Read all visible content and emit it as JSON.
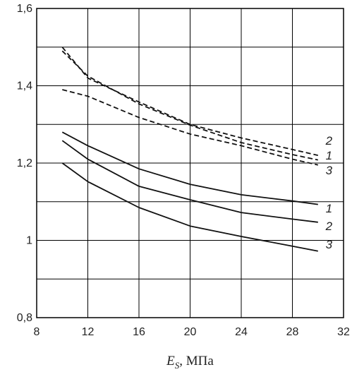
{
  "chart_data": {
    "type": "line",
    "title": "",
    "xlabel": {
      "main": "E",
      "sub": "S",
      "rest": ", МПа"
    },
    "ylabel": "",
    "xlim": [
      8,
      32
    ],
    "ylim": [
      0.8,
      1.6
    ],
    "x_ticks": [
      8,
      12,
      16,
      20,
      24,
      28,
      32
    ],
    "x_tick_labels": [
      "8",
      "12",
      "16",
      "20",
      "24",
      "28",
      "32"
    ],
    "y_ticks": [
      0.8,
      1.0,
      1.2,
      1.4,
      1.6
    ],
    "y_tick_labels": [
      "0,8",
      "1",
      "1,2",
      "1,4",
      "1,6"
    ],
    "y_grid": [
      0.8,
      0.9,
      1.0,
      1.1,
      1.2,
      1.3,
      1.4,
      1.5,
      1.6
    ],
    "x_grid": [
      8,
      12,
      16,
      20,
      24,
      28,
      32
    ],
    "grid": true,
    "series": [
      {
        "label": "1",
        "style": "solid",
        "x": [
          10,
          12,
          16,
          20,
          24,
          28,
          30
        ],
        "y": [
          1.28,
          1.245,
          1.185,
          1.145,
          1.118,
          1.102,
          1.093
        ]
      },
      {
        "label": "2",
        "style": "solid",
        "x": [
          10,
          12,
          16,
          20,
          24,
          28,
          30
        ],
        "y": [
          1.258,
          1.21,
          1.14,
          1.105,
          1.072,
          1.055,
          1.047
        ]
      },
      {
        "label": "3",
        "style": "solid",
        "x": [
          10,
          12,
          16,
          20,
          24,
          28,
          30
        ],
        "y": [
          1.2,
          1.152,
          1.085,
          1.037,
          1.01,
          0.985,
          0.972
        ]
      },
      {
        "label": "2",
        "style": "dashed",
        "x": [
          10,
          12,
          16,
          20,
          24,
          28,
          30
        ],
        "y": [
          1.5,
          1.42,
          1.358,
          1.3,
          1.265,
          1.235,
          1.22
        ]
      },
      {
        "label": "1",
        "style": "dashed",
        "x": [
          10,
          12,
          16,
          20,
          24,
          28,
          30
        ],
        "y": [
          1.49,
          1.425,
          1.353,
          1.298,
          1.253,
          1.222,
          1.208
        ]
      },
      {
        "label": "3",
        "style": "dashed",
        "x": [
          10,
          12,
          16,
          20,
          24,
          28,
          30
        ],
        "y": [
          1.39,
          1.373,
          1.318,
          1.275,
          1.245,
          1.21,
          1.195
        ]
      }
    ],
    "series_tags": [
      {
        "text": "2",
        "x": 30.6,
        "y": 1.258
      },
      {
        "text": "1",
        "x": 30.6,
        "y": 1.22
      },
      {
        "text": "3",
        "x": 30.6,
        "y": 1.182
      },
      {
        "text": "1",
        "x": 30.6,
        "y": 1.083
      },
      {
        "text": "2",
        "x": 30.6,
        "y": 1.037
      },
      {
        "text": "3",
        "x": 30.6,
        "y": 0.99
      }
    ]
  }
}
